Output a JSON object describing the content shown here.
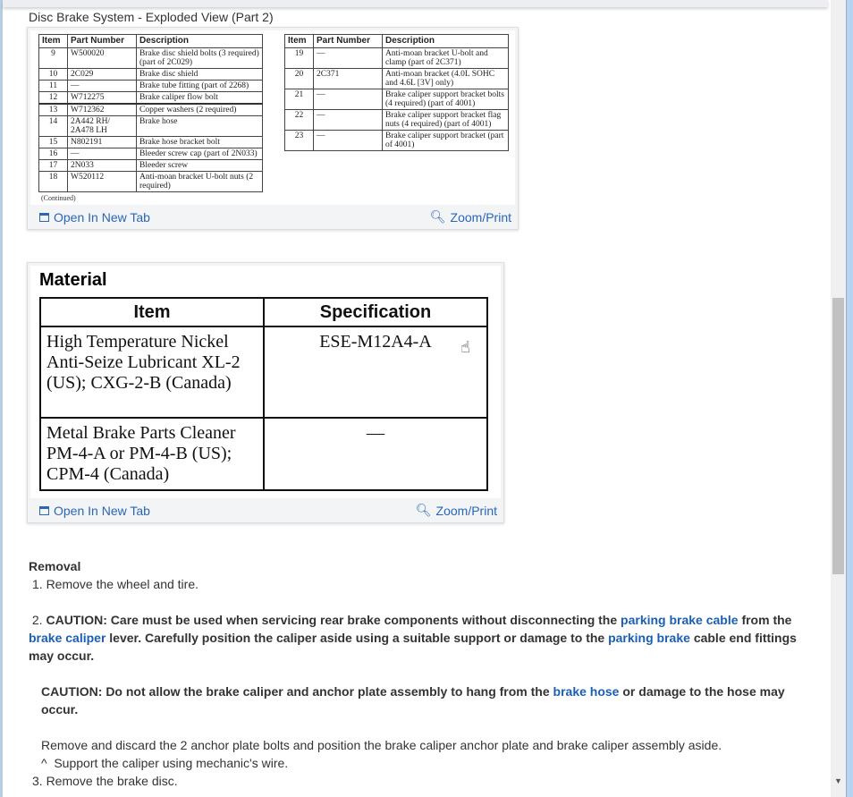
{
  "figure1": {
    "caption": "Disc Brake System - Exploded View (Part 2)",
    "headers": [
      "Item",
      "Part Number",
      "Description"
    ],
    "left_rows": [
      [
        "9",
        "W500020",
        "Brake disc shield bolts (3 required) (part of 2C029)"
      ],
      [
        "10",
        "2C029",
        "Brake disc shield"
      ],
      [
        "11",
        "—",
        "Brake tube fitting (part of 2268)"
      ],
      [
        "12",
        "W712275",
        "Brake caliper flow bolt"
      ],
      [
        "13",
        "W712362",
        "Copper washers (2 required)"
      ],
      [
        "14",
        "2A442 RH/ 2A478 LH",
        "Brake hose"
      ],
      [
        "15",
        "N802191",
        "Brake hose bracket bolt"
      ],
      [
        "16",
        "—",
        "Bleeder screw cap (part of 2N033)"
      ],
      [
        "17",
        "2N033",
        "Bleeder screw"
      ],
      [
        "18",
        "W520112",
        "Anti-moan bracket U-bolt nuts (2 required)"
      ]
    ],
    "right_rows": [
      [
        "19",
        "—",
        "Anti-moan bracket U-bolt and clamp (part of 2C371)"
      ],
      [
        "20",
        "2C371",
        "Anti-moan bracket (4.0L SOHC and 4.6L [3V] only)"
      ],
      [
        "21",
        "—",
        "Brake caliper support bracket bolts (4 required) (part of 4001)"
      ],
      [
        "22",
        "—",
        "Brake caliper support bracket flag nuts (4 required) (part of 4001)"
      ],
      [
        "23",
        "—",
        "Brake caliper support bracket (part of 4001)"
      ]
    ],
    "continued": "(Continued)",
    "open_tab": "Open In New Tab",
    "zoom_print": "Zoom/Print"
  },
  "figure2": {
    "title": "Material",
    "headers": [
      "Item",
      "Specification"
    ],
    "rows": [
      [
        "High Temperature Nickel Anti-Seize Lubricant XL-2 (US); CXG-2-B (Canada)",
        "ESE-M12A4-A"
      ],
      [
        "Metal Brake Parts Cleaner PM-4-A or PM-4-B (US); CPM-4 (Canada)",
        "—"
      ]
    ],
    "open_tab": "Open In New Tab",
    "zoom_print": "Zoom/Print"
  },
  "removal": {
    "heading": "Removal",
    "step1": "1. Remove the wheel and tire.",
    "step2_num": "2.",
    "step2_a": "CAUTION: Care must be used when servicing rear brake components without disconnecting the",
    "step2_link1": "parking brake cable",
    "step2_b": "from the",
    "step2_link2a": "brake",
    "step2_link2b": "caliper",
    "step2_c": "lever. Carefully position the caliper aside using a suitable support or damage to the",
    "step2_link3": "parking brake",
    "step2_d": "cable end fittings may occur.",
    "caution2_a": "CAUTION: Do not allow the brake caliper and anchor plate assembly to hang from the",
    "caution2_link": "brake hose",
    "caution2_b": "or damage to the hose may occur.",
    "step2_text": "Remove and discard the 2 anchor plate bolts and position the brake caliper anchor plate and brake caliper assembly aside.",
    "step2_sub": "^  Support the caliper using mechanic's wire.",
    "step3": "3. Remove the brake disc."
  },
  "colors": {
    "link": "#1a5fb4",
    "scroll_thumb": "#c1c1c1",
    "window_border": "#b7d3ef"
  }
}
